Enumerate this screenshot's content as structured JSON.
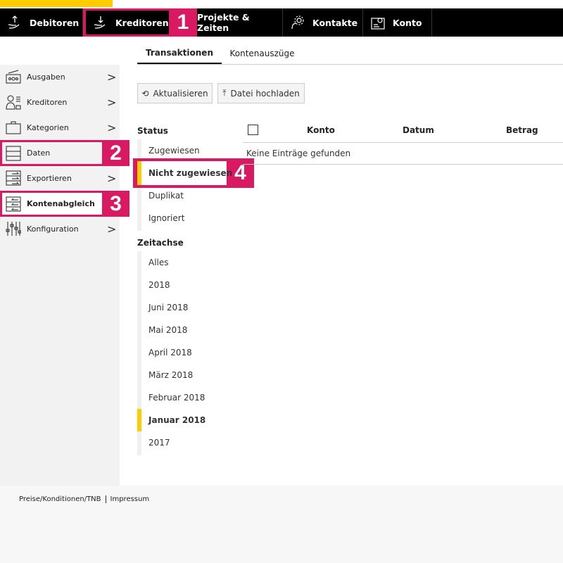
{
  "nav": {
    "items": [
      {
        "label": "Debitoren",
        "icon": "hand-up-icon"
      },
      {
        "label": "Kreditoren",
        "icon": "hand-down-icon"
      },
      {
        "label": "Projekte & Zeiten"
      },
      {
        "label": "Kontakte",
        "icon": "contacts-gear-icon"
      },
      {
        "label": "Konto",
        "icon": "account-gear-icon"
      }
    ]
  },
  "tabs": [
    "Transaktionen",
    "Kontenauszüge"
  ],
  "sidebar": {
    "items": [
      {
        "label": "Ausgaben"
      },
      {
        "label": "Kreditoren"
      },
      {
        "label": "Kategorien"
      },
      {
        "label": "Daten"
      },
      {
        "label": "Exportieren"
      },
      {
        "label": "Kontenabgleich"
      },
      {
        "label": "Konfiguration"
      }
    ]
  },
  "buttons": {
    "refresh": "Aktualisieren",
    "upload": "Datei hochladen"
  },
  "status": {
    "title": "Status",
    "items": [
      "Zugewiesen",
      "Nicht zugewiesen",
      "Duplikat",
      "Ignoriert"
    ],
    "selected": "Nicht zugewiesen"
  },
  "timeline": {
    "title": "Zeitachse",
    "items": [
      "Alles",
      "2018",
      "Juni 2018",
      "Mai 2018",
      "April 2018",
      "März 2018",
      "Februar 2018",
      "Januar 2018",
      "2017"
    ],
    "selected": "Januar 2018"
  },
  "table": {
    "columns": [
      "Konto",
      "Datum",
      "Betrag"
    ],
    "empty": "Keine Einträge gefunden"
  },
  "badges": [
    "1",
    "2",
    "3",
    "4"
  ],
  "footer": {
    "links": [
      "Preise/Konditionen/TNB",
      "Impressum"
    ]
  },
  "colors": {
    "accent": "#ffcc00",
    "highlight": "#d91a63",
    "nav": "#000000"
  }
}
